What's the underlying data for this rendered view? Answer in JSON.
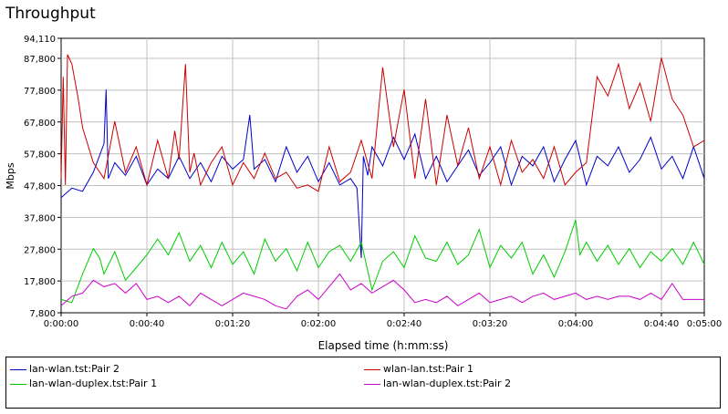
{
  "chart_data": {
    "type": "line",
    "title": "Throughput",
    "xlabel": "Elapsed time (h:mm:ss)",
    "ylabel": "Mbps",
    "x_ticks": [
      "0:00:00",
      "0:00:40",
      "0:01:20",
      "0:02:00",
      "0:02:40",
      "0:03:20",
      "0:04:00",
      "0:04:40",
      "0:05:00"
    ],
    "x_tick_seconds": [
      0,
      40,
      80,
      120,
      160,
      200,
      240,
      280,
      300
    ],
    "y_ticks": [
      "7,800",
      "17,800",
      "27,800",
      "37,800",
      "47,800",
      "57,800",
      "67,800",
      "77,800",
      "87,800",
      "94,110"
    ],
    "y_tick_values": [
      7.8,
      17.8,
      27.8,
      37.8,
      47.8,
      57.8,
      67.8,
      77.8,
      87.8,
      94.11
    ],
    "xlim": [
      0,
      300
    ],
    "ylim": [
      7.8,
      94.11
    ],
    "grid": true,
    "legend_position": "bottom",
    "series": [
      {
        "name": "lan-wlan.tst:Pair 2",
        "color": "#0000cc",
        "x": [
          0,
          5,
          10,
          15,
          20,
          21,
          22,
          25,
          30,
          35,
          40,
          45,
          50,
          55,
          60,
          65,
          70,
          75,
          80,
          85,
          88,
          90,
          95,
          100,
          105,
          110,
          115,
          120,
          125,
          130,
          135,
          138,
          140,
          141,
          143,
          145,
          150,
          155,
          160,
          165,
          170,
          175,
          180,
          185,
          190,
          195,
          200,
          205,
          210,
          215,
          220,
          225,
          230,
          235,
          240,
          245,
          250,
          255,
          260,
          265,
          270,
          275,
          280,
          285,
          290,
          295,
          300
        ],
        "values": [
          44,
          47,
          46,
          52,
          61,
          78,
          50,
          55,
          51,
          57,
          48,
          53,
          50,
          57,
          50,
          55,
          49,
          57,
          53,
          56,
          70,
          53,
          56,
          49,
          60,
          52,
          57,
          49,
          55,
          48,
          50,
          47,
          25,
          57,
          51,
          60,
          54,
          63,
          56,
          64,
          50,
          57,
          49,
          54,
          59,
          51,
          55,
          60,
          48,
          57,
          54,
          60,
          49,
          56,
          62,
          48,
          57,
          54,
          60,
          52,
          56,
          63,
          53,
          57,
          50,
          60,
          50
        ]
      },
      {
        "name": "wlan-lan.tst:Pair 1",
        "color": "#cc0000",
        "x": [
          0,
          1,
          2,
          3,
          5,
          8,
          10,
          15,
          20,
          25,
          30,
          35,
          40,
          45,
          50,
          53,
          55,
          58,
          60,
          62,
          65,
          70,
          75,
          80,
          85,
          90,
          95,
          100,
          105,
          110,
          115,
          120,
          125,
          130,
          135,
          140,
          145,
          150,
          155,
          160,
          165,
          170,
          175,
          180,
          185,
          190,
          195,
          200,
          205,
          210,
          215,
          220,
          225,
          230,
          235,
          240,
          245,
          250,
          255,
          260,
          265,
          270,
          275,
          280,
          285,
          290,
          295,
          300
        ],
        "values": [
          50,
          82,
          48,
          89,
          86,
          75,
          66,
          55,
          50,
          68,
          52,
          60,
          48,
          62,
          50,
          65,
          56,
          86,
          52,
          58,
          48,
          55,
          60,
          48,
          55,
          50,
          58,
          50,
          52,
          47,
          48,
          46,
          60,
          49,
          52,
          62,
          50,
          85,
          60,
          78,
          50,
          75,
          48,
          70,
          54,
          66,
          50,
          60,
          48,
          62,
          52,
          56,
          50,
          60,
          48,
          52,
          55,
          82,
          76,
          86,
          72,
          80,
          68,
          88,
          75,
          70,
          60,
          62
        ]
      },
      {
        "name": "lan-wlan-duplex.tst:Pair 1",
        "color": "#00cc00",
        "x": [
          0,
          5,
          10,
          15,
          18,
          20,
          25,
          30,
          35,
          40,
          45,
          50,
          55,
          60,
          65,
          70,
          75,
          80,
          85,
          90,
          95,
          100,
          105,
          110,
          115,
          120,
          125,
          130,
          135,
          140,
          145,
          150,
          155,
          160,
          165,
          170,
          175,
          180,
          185,
          190,
          195,
          200,
          205,
          210,
          215,
          220,
          225,
          230,
          235,
          240,
          242,
          245,
          250,
          255,
          260,
          265,
          270,
          275,
          280,
          285,
          290,
          295,
          300
        ],
        "values": [
          12,
          11,
          20,
          28,
          25,
          20,
          27,
          18,
          22,
          26,
          31,
          26,
          33,
          24,
          29,
          22,
          30,
          23,
          27,
          20,
          31,
          24,
          28,
          21,
          30,
          22,
          27,
          29,
          24,
          30,
          15,
          24,
          27,
          22,
          32,
          25,
          24,
          30,
          23,
          26,
          34,
          22,
          29,
          25,
          30,
          20,
          26,
          19,
          27,
          37,
          26,
          30,
          24,
          29,
          23,
          28,
          22,
          27,
          24,
          28,
          23,
          30,
          23
        ]
      },
      {
        "name": "lan-wlan-duplex.tst:Pair 2",
        "color": "#cc00cc",
        "x": [
          0,
          5,
          10,
          15,
          20,
          25,
          30,
          35,
          40,
          45,
          50,
          55,
          60,
          65,
          70,
          75,
          80,
          85,
          90,
          95,
          100,
          105,
          110,
          115,
          120,
          125,
          130,
          135,
          140,
          145,
          150,
          155,
          160,
          165,
          170,
          175,
          180,
          185,
          190,
          195,
          200,
          205,
          210,
          215,
          220,
          225,
          230,
          235,
          240,
          245,
          250,
          255,
          260,
          265,
          270,
          275,
          280,
          285,
          290,
          295,
          300
        ],
        "values": [
          10,
          13,
          14,
          18,
          16,
          17,
          14,
          17,
          12,
          13,
          11,
          13,
          10,
          14,
          12,
          10,
          12,
          14,
          13,
          12,
          10,
          9,
          13,
          15,
          12,
          16,
          20,
          15,
          17,
          14,
          16,
          18,
          15,
          11,
          12,
          11,
          13,
          10,
          12,
          14,
          11,
          12,
          13,
          11,
          13,
          14,
          12,
          13,
          14,
          12,
          13,
          12,
          13,
          13,
          12,
          14,
          12,
          17,
          12,
          12,
          12
        ]
      }
    ]
  }
}
